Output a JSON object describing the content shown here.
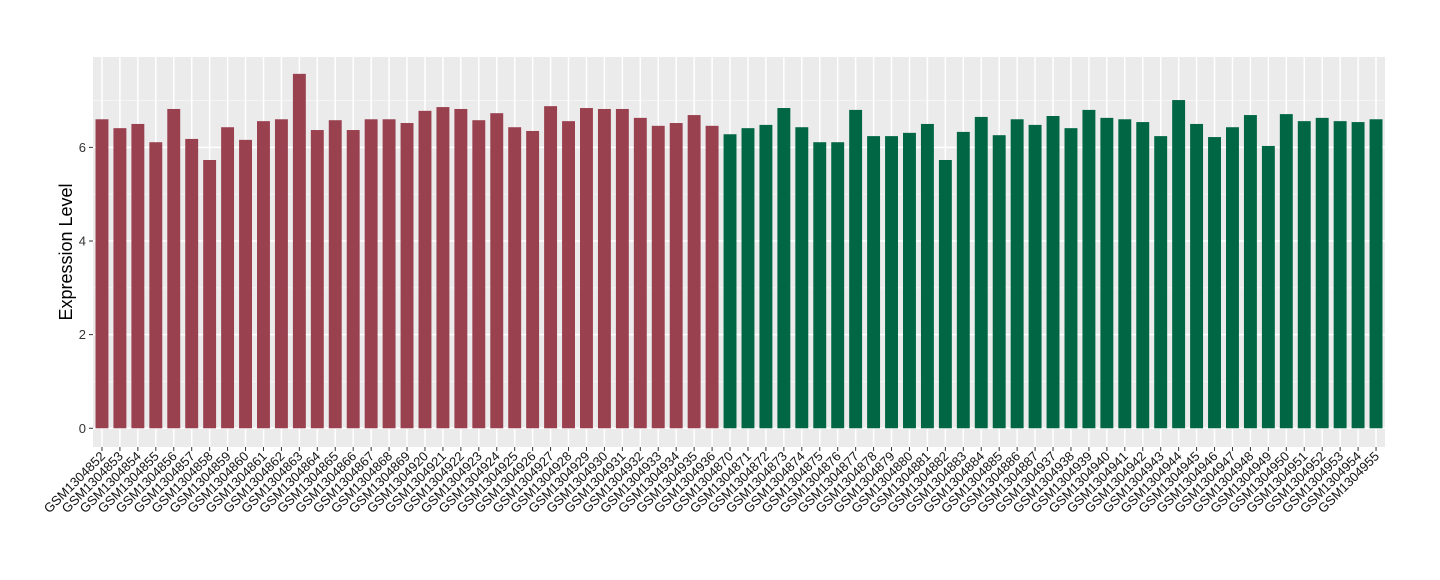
{
  "chart_data": {
    "type": "bar",
    "title": "",
    "xlabel": "",
    "ylabel": "Expression Level",
    "ylim": [
      -0.4,
      7.93
    ],
    "yticks": [
      0,
      2,
      4,
      6
    ],
    "grid": true,
    "legend": "none",
    "colors": {
      "group1": "#9a4150",
      "group2": "#006644",
      "panel": "#ebebeb",
      "grid": "#ffffff"
    },
    "categories": [
      "GSM1304852",
      "GSM1304853",
      "GSM1304854",
      "GSM1304855",
      "GSM1304856",
      "GSM1304857",
      "GSM1304858",
      "GSM1304859",
      "GSM1304860",
      "GSM1304861",
      "GSM1304862",
      "GSM1304863",
      "GSM1304864",
      "GSM1304865",
      "GSM1304866",
      "GSM1304867",
      "GSM1304868",
      "GSM1304869",
      "GSM1304920",
      "GSM1304921",
      "GSM1304922",
      "GSM1304923",
      "GSM1304924",
      "GSM1304925",
      "GSM1304926",
      "GSM1304927",
      "GSM1304928",
      "GSM1304929",
      "GSM1304930",
      "GSM1304931",
      "GSM1304932",
      "GSM1304933",
      "GSM1304934",
      "GSM1304935",
      "GSM1304936",
      "GSM1304870",
      "GSM1304871",
      "GSM1304872",
      "GSM1304873",
      "GSM1304874",
      "GSM1304875",
      "GSM1304876",
      "GSM1304877",
      "GSM1304878",
      "GSM1304879",
      "GSM1304880",
      "GSM1304881",
      "GSM1304882",
      "GSM1304883",
      "GSM1304884",
      "GSM1304885",
      "GSM1304886",
      "GSM1304887",
      "GSM1304937",
      "GSM1304938",
      "GSM1304939",
      "GSM1304940",
      "GSM1304941",
      "GSM1304942",
      "GSM1304943",
      "GSM1304944",
      "GSM1304945",
      "GSM1304946",
      "GSM1304947",
      "GSM1304948",
      "GSM1304949",
      "GSM1304950",
      "GSM1304951",
      "GSM1304952",
      "GSM1304953",
      "GSM1304954",
      "GSM1304955"
    ],
    "values": [
      6.6,
      6.41,
      6.5,
      6.11,
      6.82,
      6.18,
      5.73,
      6.43,
      6.16,
      6.56,
      6.6,
      7.57,
      6.37,
      6.58,
      6.37,
      6.6,
      6.6,
      6.52,
      6.78,
      6.86,
      6.82,
      6.58,
      6.73,
      6.43,
      6.35,
      6.88,
      6.56,
      6.84,
      6.82,
      6.82,
      6.63,
      6.46,
      6.52,
      6.69,
      6.46,
      6.28,
      6.41,
      6.48,
      6.84,
      6.43,
      6.11,
      6.11,
      6.8,
      6.24,
      6.24,
      6.31,
      6.5,
      5.73,
      6.33,
      6.65,
      6.26,
      6.6,
      6.48,
      6.67,
      6.41,
      6.8,
      6.63,
      6.6,
      6.54,
      6.24,
      7.01,
      6.5,
      6.22,
      6.43,
      6.69,
      6.03,
      6.71,
      6.56,
      6.63,
      6.56,
      6.54,
      6.6
    ],
    "groups": [
      1,
      1,
      1,
      1,
      1,
      1,
      1,
      1,
      1,
      1,
      1,
      1,
      1,
      1,
      1,
      1,
      1,
      1,
      1,
      1,
      1,
      1,
      1,
      1,
      1,
      1,
      1,
      1,
      1,
      1,
      1,
      1,
      1,
      1,
      1,
      2,
      2,
      2,
      2,
      2,
      2,
      2,
      2,
      2,
      2,
      2,
      2,
      2,
      2,
      2,
      2,
      2,
      2,
      2,
      2,
      2,
      2,
      2,
      2,
      2,
      2,
      2,
      2,
      2,
      2,
      2,
      2,
      2,
      2,
      2,
      2,
      2
    ]
  }
}
